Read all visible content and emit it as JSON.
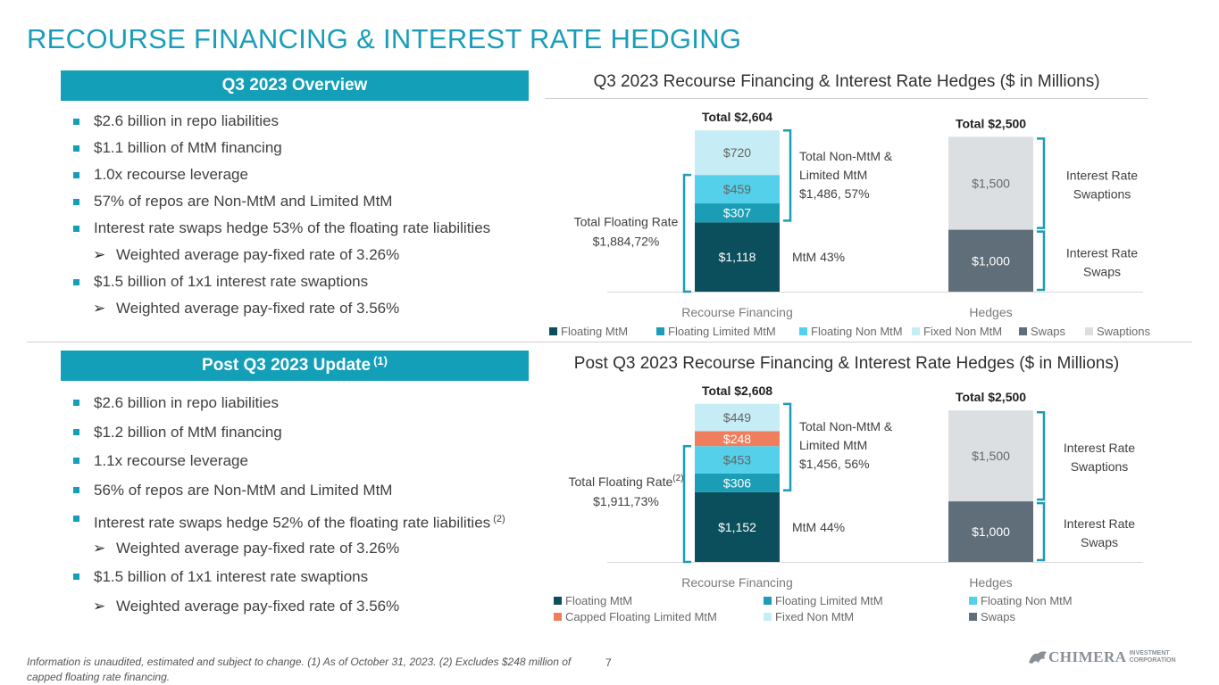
{
  "page_title": "RECOURSE FINANCING & INTEREST RATE HEDGING",
  "overview": {
    "header": "Q3 2023 Overview",
    "bullets": [
      {
        "level": 1,
        "text": "$2.6 billion in repo liabilities"
      },
      {
        "level": 1,
        "text": "$1.1 billion of MtM financing"
      },
      {
        "level": 1,
        "text": "1.0x recourse leverage"
      },
      {
        "level": 1,
        "text": "57% of repos are Non-MtM and Limited MtM"
      },
      {
        "level": 1,
        "text": "Interest rate swaps hedge 53% of the floating rate liabilities"
      },
      {
        "level": 2,
        "text": "Weighted average pay-fixed rate of 3.26%"
      },
      {
        "level": 1,
        "text": "$1.5 billion of 1x1 interest rate swaptions"
      },
      {
        "level": 2,
        "text": "Weighted average pay-fixed rate of 3.56%"
      }
    ]
  },
  "update": {
    "header": "Post Q3 2023 Update",
    "header_note": "(1)",
    "bullets": [
      {
        "level": 1,
        "text": "$2.6 billion in repo liabilities"
      },
      {
        "level": 1,
        "text": "$1.2 billion of MtM financing"
      },
      {
        "level": 1,
        "text": "1.1x recourse leverage"
      },
      {
        "level": 1,
        "text": "56% of repos are Non-MtM and Limited MtM"
      },
      {
        "level": 1,
        "text": "Interest rate swaps hedge 52% of the floating rate liabilities",
        "note": "(2)"
      },
      {
        "level": 2,
        "text": "Weighted average pay-fixed rate of 3.26%"
      },
      {
        "level": 1,
        "text": "$1.5 billion of 1x1 interest rate swaptions"
      },
      {
        "level": 2,
        "text": "Weighted average pay-fixed rate of 3.56%"
      }
    ]
  },
  "colors": {
    "accent": "#139fb8",
    "Floating MtM": "#0b4f5c",
    "Floating Limited MtM": "#1a9db5",
    "Floating Non MtM": "#54d0ea",
    "Fixed Non MtM": "#c6ecf5",
    "Capped Floating Limited MtM": "#f07e5c",
    "Swaps": "#5f6e78",
    "Swaptions": "#dcdfe1"
  },
  "chart_data": [
    {
      "type": "bar",
      "stacked": true,
      "title": "Q3 2023 Recourse Financing & Interest Rate Hedges ($ in Millions)",
      "categories": [
        "Recourse Financing",
        "Hedges"
      ],
      "totals": [
        "Total $2,604",
        "Total $2,500"
      ],
      "series": [
        {
          "name": "Floating MtM",
          "values": [
            1118,
            0
          ],
          "labels": [
            "$1,118",
            ""
          ]
        },
        {
          "name": "Floating Limited MtM",
          "values": [
            307,
            0
          ],
          "labels": [
            "$307",
            ""
          ]
        },
        {
          "name": "Floating Non MtM",
          "values": [
            459,
            0
          ],
          "labels": [
            "$459",
            ""
          ]
        },
        {
          "name": "Fixed Non MtM",
          "values": [
            720,
            0
          ],
          "labels": [
            "$720",
            ""
          ]
        },
        {
          "name": "Swaps",
          "values": [
            0,
            1000
          ],
          "labels": [
            "",
            "$1,000"
          ]
        },
        {
          "name": "Swaptions",
          "values": [
            0,
            1500
          ],
          "labels": [
            "",
            "$1,500"
          ]
        }
      ],
      "legend": [
        "Floating MtM",
        "Floating Limited MtM",
        "Floating Non MtM",
        "Fixed Non MtM",
        "Swaps",
        "Swaptions"
      ],
      "legend_position": "bottom",
      "annotations": {
        "floating_rate": [
          "Total Floating Rate",
          "$1,884,72%"
        ],
        "non_mtm": [
          "Total Non-MtM &",
          "Limited MtM",
          "$1,486, 57%"
        ],
        "mtm": "MtM 43%",
        "swaptions": [
          "Interest Rate",
          "Swaptions"
        ],
        "swaps": [
          "Interest Rate",
          "Swaps"
        ]
      }
    },
    {
      "type": "bar",
      "stacked": true,
      "title": "Post Q3 2023 Recourse Financing & Interest Rate Hedges ($ in Millions)",
      "categories": [
        "Recourse Financing",
        "Hedges"
      ],
      "totals": [
        "Total $2,608",
        "Total $2,500"
      ],
      "series": [
        {
          "name": "Floating MtM",
          "values": [
            1152,
            0
          ],
          "labels": [
            "$1,152",
            ""
          ]
        },
        {
          "name": "Floating Limited MtM",
          "values": [
            306,
            0
          ],
          "labels": [
            "$306",
            ""
          ]
        },
        {
          "name": "Floating Non MtM",
          "values": [
            453,
            0
          ],
          "labels": [
            "$453",
            ""
          ]
        },
        {
          "name": "Capped Floating Limited MtM",
          "values": [
            248,
            0
          ],
          "labels": [
            "$248",
            ""
          ]
        },
        {
          "name": "Fixed Non MtM",
          "values": [
            449,
            0
          ],
          "labels": [
            "$449",
            ""
          ]
        },
        {
          "name": "Swaps",
          "values": [
            0,
            1000
          ],
          "labels": [
            "",
            "$1,000"
          ]
        },
        {
          "name": "Swaptions",
          "values": [
            0,
            1500
          ],
          "labels": [
            "",
            "$1,500"
          ]
        }
      ],
      "legend": [
        "Floating MtM",
        "Floating Limited MtM",
        "Floating Non MtM",
        "Capped Floating Limited MtM",
        "Fixed Non MtM",
        "Swaps"
      ],
      "legend_position": "bottom",
      "annotations": {
        "floating_rate": [
          "Total Floating Rate",
          "$1,911,73%"
        ],
        "floating_rate_note": "(2)",
        "non_mtm": [
          "Total Non-MtM &",
          "Limited MtM",
          "$1,456, 56%"
        ],
        "mtm": "MtM 44%",
        "swaptions": [
          "Interest Rate",
          "Swaptions"
        ],
        "swaps": [
          "Interest Rate",
          "Swaps"
        ]
      }
    }
  ],
  "footnote": "Information is unaudited, estimated and subject to change. (1) As of October 31, 2023. (2) Excludes $248 million of capped floating rate financing.",
  "page_number": "7",
  "logo": {
    "name": "CHIMERA",
    "sub1": "INVESTMENT",
    "sub2": "CORPORATION"
  }
}
